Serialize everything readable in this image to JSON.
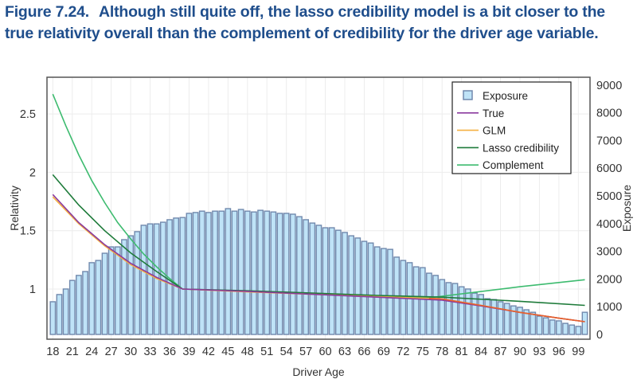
{
  "caption": {
    "number": "Figure 7.24.",
    "text": "Although still quite off, the lasso credibility model is a bit closer to the true relativity overall than the complement of credibility for the driver age variable."
  },
  "colors": {
    "caption": "#1f4e8c",
    "bar_fill": "#bfe3f7",
    "bar_stroke": "#7189ad",
    "true": "#8b3a9e",
    "glm": "#f5b041",
    "lasso": "#1e7b3a",
    "complement": "#3dbb6f",
    "overlap": "#e8622c"
  },
  "chart_data": {
    "type": "bar+line",
    "title": "",
    "xlabel": "Driver Age",
    "ylabel_left": "Relativity",
    "ylabel_right": "Exposure",
    "grid": true,
    "legend_position": "top-right",
    "xlim": [
      17.1,
      100.8
    ],
    "ylim_left": [
      0.57,
      2.815
    ],
    "ylim_right": [
      -172,
      9282
    ],
    "x_ticks": [
      18,
      21,
      24,
      27,
      30,
      33,
      36,
      39,
      42,
      45,
      48,
      51,
      54,
      57,
      60,
      63,
      66,
      69,
      72,
      75,
      78,
      81,
      84,
      87,
      90,
      93,
      96,
      99
    ],
    "y_left_ticks": [
      1,
      1.5,
      2,
      2.5
    ],
    "y_left_tick_labels": [
      "1",
      "1.5",
      "2",
      "2.5"
    ],
    "y_right_ticks": [
      0,
      1000,
      2000,
      3000,
      4000,
      5000,
      6000,
      7000,
      8000,
      9000
    ],
    "y_right_tick_labels": [
      "0",
      "1000",
      "2000",
      "3000",
      "4000",
      "5000",
      "6000",
      "7000",
      "8000",
      "9000"
    ],
    "legend": [
      "Exposure",
      "True",
      "GLM",
      "Lasso credibility",
      "Complement"
    ],
    "x": [
      18,
      19,
      20,
      21,
      22,
      23,
      24,
      25,
      26,
      27,
      28,
      29,
      30,
      31,
      32,
      33,
      34,
      35,
      36,
      37,
      38,
      39,
      40,
      41,
      42,
      43,
      44,
      45,
      46,
      47,
      48,
      49,
      50,
      51,
      52,
      53,
      54,
      55,
      56,
      57,
      58,
      59,
      60,
      61,
      62,
      63,
      64,
      65,
      66,
      67,
      68,
      69,
      70,
      71,
      72,
      73,
      74,
      75,
      76,
      77,
      78,
      79,
      80,
      81,
      82,
      83,
      84,
      85,
      86,
      87,
      88,
      89,
      90,
      91,
      92,
      93,
      94,
      95,
      96,
      97,
      98,
      99,
      100
    ],
    "exposure": [
      1180,
      1440,
      1640,
      1950,
      2130,
      2270,
      2590,
      2670,
      2930,
      3160,
      3160,
      3420,
      3560,
      3710,
      3940,
      3990,
      3990,
      4050,
      4140,
      4200,
      4220,
      4370,
      4400,
      4450,
      4400,
      4450,
      4450,
      4540,
      4450,
      4510,
      4450,
      4420,
      4480,
      4450,
      4420,
      4370,
      4370,
      4340,
      4250,
      4140,
      4020,
      3940,
      3850,
      3850,
      3760,
      3680,
      3560,
      3480,
      3360,
      3300,
      3160,
      3100,
      3070,
      2790,
      2670,
      2590,
      2440,
      2410,
      2210,
      2130,
      1980,
      1870,
      1840,
      1720,
      1640,
      1490,
      1440,
      1290,
      1260,
      1180,
      1120,
      1030,
      980,
      890,
      800,
      660,
      600,
      520,
      490,
      400,
      340,
      290,
      800
    ],
    "series": [
      {
        "name": "True",
        "points": [
          [
            18,
            1.81
          ],
          [
            22,
            1.57
          ],
          [
            26,
            1.38
          ],
          [
            30,
            1.22
          ],
          [
            34,
            1.1
          ],
          [
            38,
            1.0
          ],
          [
            48,
            0.98
          ],
          [
            58,
            0.955
          ],
          [
            68,
            0.93
          ],
          [
            78,
            0.905
          ],
          [
            84,
            0.855
          ],
          [
            90,
            0.8
          ],
          [
            96,
            0.75
          ],
          [
            100,
            0.72
          ]
        ]
      },
      {
        "name": "GLM",
        "points": [
          [
            18,
            1.79
          ],
          [
            22,
            1.56
          ],
          [
            26,
            1.37
          ],
          [
            30,
            1.21
          ],
          [
            34,
            1.09
          ],
          [
            38,
            1.0
          ],
          [
            48,
            0.975
          ],
          [
            58,
            0.955
          ],
          [
            68,
            0.935
          ],
          [
            76,
            0.92
          ],
          [
            78,
            0.915
          ],
          [
            84,
            0.86
          ],
          [
            90,
            0.8
          ],
          [
            96,
            0.75
          ],
          [
            100,
            0.72
          ]
        ]
      },
      {
        "name": "Lasso credibility",
        "points": [
          [
            18,
            1.98
          ],
          [
            22,
            1.72
          ],
          [
            26,
            1.5
          ],
          [
            30,
            1.31
          ],
          [
            34,
            1.15
          ],
          [
            38,
            1.0
          ],
          [
            48,
            0.985
          ],
          [
            58,
            0.965
          ],
          [
            68,
            0.945
          ],
          [
            78,
            0.93
          ],
          [
            90,
            0.895
          ],
          [
            100,
            0.86
          ]
        ]
      },
      {
        "name": "Complement",
        "points": [
          [
            18,
            2.67
          ],
          [
            20,
            2.4
          ],
          [
            22,
            2.15
          ],
          [
            24,
            1.93
          ],
          [
            26,
            1.74
          ],
          [
            28,
            1.57
          ],
          [
            30,
            1.43
          ],
          [
            32,
            1.3
          ],
          [
            34,
            1.19
          ],
          [
            36,
            1.09
          ],
          [
            38,
            1.0
          ],
          [
            48,
            0.98
          ],
          [
            58,
            0.96
          ],
          [
            68,
            0.94
          ],
          [
            76,
            0.925
          ],
          [
            82,
            0.965
          ],
          [
            90,
            1.02
          ],
          [
            100,
            1.08
          ]
        ]
      }
    ]
  }
}
